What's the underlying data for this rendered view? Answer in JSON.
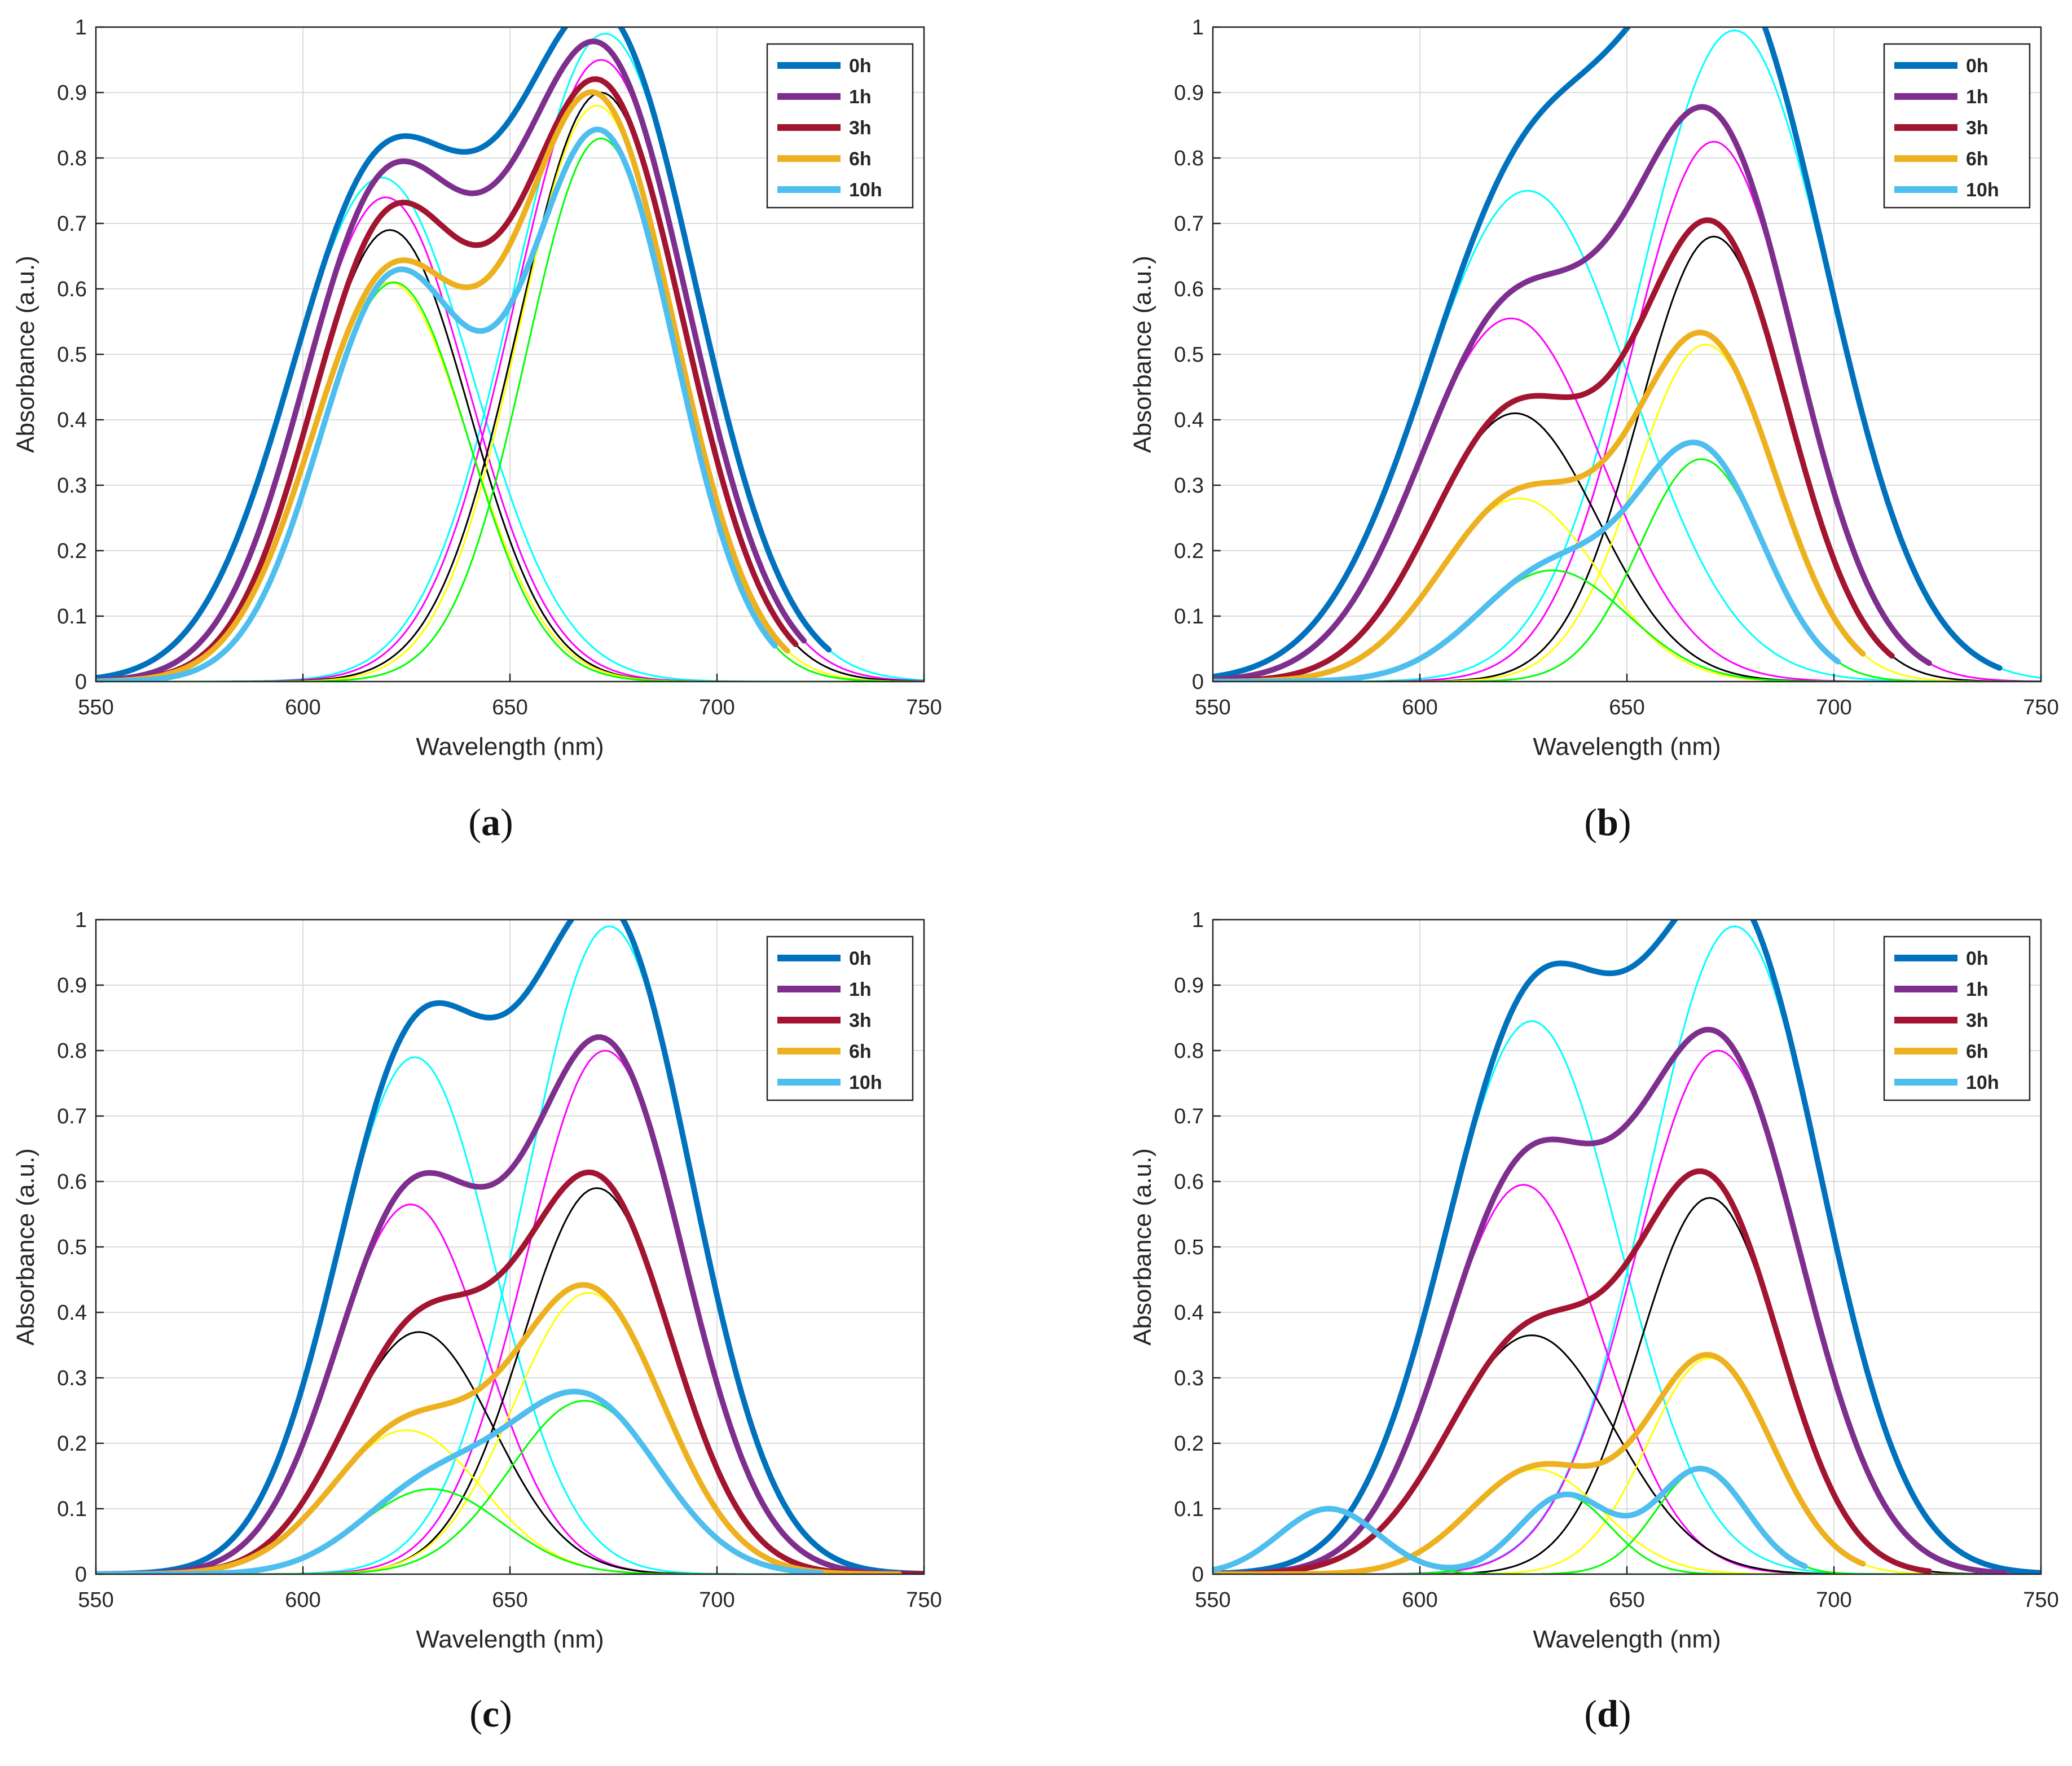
{
  "figure": {
    "panels": [
      "a",
      "b",
      "c",
      "d"
    ]
  },
  "legend": {
    "entries": [
      {
        "name": "0h",
        "color": "#0072BD"
      },
      {
        "name": "1h",
        "color": "#7E2F8E"
      },
      {
        "name": "3h",
        "color": "#A2142F"
      },
      {
        "name": "6h",
        "color": "#EDB120"
      },
      {
        "name": "10h",
        "color": "#4DBEEE"
      }
    ]
  },
  "fit_colors": {
    "0h": "#00FFFF",
    "1h": "#FF00FF",
    "3h": "#000000",
    "6h": "#FFFF00",
    "10h": "#00FF00"
  },
  "chart_data": [
    {
      "id": "a",
      "caption_letter": "a",
      "type": "line",
      "xlabel": "Wavelength (nm)",
      "ylabel": "Absorbance (a.u.)",
      "xlim": [
        550,
        750
      ],
      "ylim": [
        0,
        1
      ],
      "xticks": [
        "550",
        "600",
        "650",
        "700",
        "750"
      ],
      "yticks": [
        "0",
        "0.1",
        "0.2",
        "0.3",
        "0.4",
        "0.5",
        "0.6",
        "0.7",
        "0.8",
        "0.9",
        "1"
      ],
      "grid": true,
      "legend_position": "top-right",
      "series": [
        {
          "name": "0h",
          "x_cut": 727,
          "peaks": [
            {
              "amp": 0.77,
              "center": 619,
              "sigma": 22
            },
            {
              "amp": 0.99,
              "center": 673,
              "sigma": 22
            }
          ]
        },
        {
          "name": "1h",
          "x_cut": 721,
          "peaks": [
            {
              "amp": 0.74,
              "center": 620,
              "sigma": 20
            },
            {
              "amp": 0.95,
              "center": 672,
              "sigma": 21
            }
          ]
        },
        {
          "name": "3h",
          "x_cut": 719,
          "peaks": [
            {
              "amp": 0.69,
              "center": 621,
              "sigma": 19
            },
            {
              "amp": 0.9,
              "center": 672,
              "sigma": 20
            }
          ]
        },
        {
          "name": "6h",
          "x_cut": 717,
          "peaks": [
            {
              "amp": 0.61,
              "center": 621,
              "sigma": 19
            },
            {
              "amp": 0.88,
              "center": 671,
              "sigma": 19
            }
          ]
        },
        {
          "name": "10h",
          "x_cut": 714,
          "peaks": [
            {
              "amp": 0.61,
              "center": 622,
              "sigma": 18
            },
            {
              "amp": 0.83,
              "center": 672,
              "sigma": 18
            }
          ]
        }
      ]
    },
    {
      "id": "b",
      "caption_letter": "b",
      "type": "line",
      "xlabel": "Wavelength (nm)",
      "ylabel": "Absorbance (a.u.)",
      "xlim": [
        550,
        750
      ],
      "ylim": [
        0,
        1
      ],
      "xticks": [
        "550",
        "600",
        "650",
        "700",
        "750"
      ],
      "yticks": [
        "0",
        "0.1",
        "0.2",
        "0.3",
        "0.4",
        "0.5",
        "0.6",
        "0.7",
        "0.8",
        "0.9",
        "1"
      ],
      "grid": true,
      "legend_position": "top-right",
      "series": [
        {
          "name": "0h",
          "x_cut": 740,
          "peaks": [
            {
              "amp": 0.75,
              "center": 626,
              "sigma": 25
            },
            {
              "amp": 0.995,
              "center": 676,
              "sigma": 23
            }
          ]
        },
        {
          "name": "1h",
          "x_cut": 723,
          "peaks": [
            {
              "amp": 0.555,
              "center": 622,
              "sigma": 22
            },
            {
              "amp": 0.825,
              "center": 671,
              "sigma": 20
            }
          ]
        },
        {
          "name": "3h",
          "x_cut": 714,
          "peaks": [
            {
              "amp": 0.41,
              "center": 623,
              "sigma": 20
            },
            {
              "amp": 0.68,
              "center": 671,
              "sigma": 18
            }
          ]
        },
        {
          "name": "6h",
          "x_cut": 707,
          "peaks": [
            {
              "amp": 0.28,
              "center": 624,
              "sigma": 19
            },
            {
              "amp": 0.515,
              "center": 669,
              "sigma": 17
            }
          ]
        },
        {
          "name": "10h",
          "x_cut": 701,
          "peaks": [
            {
              "amp": 0.17,
              "center": 632,
              "sigma": 18
            },
            {
              "amp": 0.34,
              "center": 668,
              "sigma": 15
            }
          ]
        }
      ]
    },
    {
      "id": "c",
      "caption_letter": "c",
      "type": "line",
      "xlabel": "Wavelength (nm)",
      "ylabel": "Absorbance (a.u.)",
      "xlim": [
        550,
        750
      ],
      "ylim": [
        0,
        1
      ],
      "xticks": [
        "550",
        "600",
        "650",
        "700",
        "750"
      ],
      "yticks": [
        "0",
        "0.1",
        "0.2",
        "0.3",
        "0.4",
        "0.5",
        "0.6",
        "0.7",
        "0.8",
        "0.9",
        "1"
      ],
      "grid": true,
      "legend_position": "top-right",
      "series": [
        {
          "name": "0h",
          "x_cut": 750,
          "peaks": [
            {
              "amp": 0.79,
              "center": 627,
              "sigma": 19
            },
            {
              "amp": 0.99,
              "center": 674,
              "sigma": 20
            }
          ]
        },
        {
          "name": "1h",
          "x_cut": 750,
          "peaks": [
            {
              "amp": 0.565,
              "center": 626,
              "sigma": 18
            },
            {
              "amp": 0.8,
              "center": 673,
              "sigma": 19
            }
          ]
        },
        {
          "name": "3h",
          "x_cut": 750,
          "peaks": [
            {
              "amp": 0.37,
              "center": 628,
              "sigma": 18
            },
            {
              "amp": 0.59,
              "center": 671,
              "sigma": 18
            }
          ]
        },
        {
          "name": "6h",
          "x_cut": 744,
          "peaks": [
            {
              "amp": 0.22,
              "center": 625,
              "sigma": 18
            },
            {
              "amp": 0.43,
              "center": 669,
              "sigma": 18
            }
          ]
        },
        {
          "name": "10h",
          "x_cut": 725,
          "peaks": [
            {
              "amp": 0.13,
              "center": 631,
              "sigma": 17
            },
            {
              "amp": 0.265,
              "center": 668,
              "sigma": 18
            }
          ]
        }
      ]
    },
    {
      "id": "d",
      "caption_letter": "d",
      "type": "line",
      "xlabel": "Wavelength (nm)",
      "ylabel": "Absorbance (a.u.)",
      "xlim": [
        550,
        750
      ],
      "ylim": [
        0,
        1
      ],
      "xticks": [
        "550",
        "600",
        "650",
        "700",
        "750"
      ],
      "yticks": [
        "0",
        "0.1",
        "0.2",
        "0.3",
        "0.4",
        "0.5",
        "0.6",
        "0.7",
        "0.8",
        "0.9",
        "1"
      ],
      "grid": true,
      "legend_position": "top-right",
      "series": [
        {
          "name": "0h",
          "x_cut": 750,
          "peaks": [
            {
              "amp": 0.845,
              "center": 627,
              "sigma": 21
            },
            {
              "amp": 0.99,
              "center": 676,
              "sigma": 21
            }
          ]
        },
        {
          "name": "1h",
          "x_cut": 741,
          "peaks": [
            {
              "amp": 0.595,
              "center": 625,
              "sigma": 19
            },
            {
              "amp": 0.8,
              "center": 672,
              "sigma": 20
            }
          ]
        },
        {
          "name": "3h",
          "x_cut": 723,
          "peaks": [
            {
              "amp": 0.365,
              "center": 627,
              "sigma": 20
            },
            {
              "amp": 0.575,
              "center": 670,
              "sigma": 17
            }
          ]
        },
        {
          "name": "6h",
          "x_cut": 707,
          "peaks": [
            {
              "amp": 0.16,
              "center": 628,
              "sigma": 16
            },
            {
              "amp": 0.33,
              "center": 670,
              "sigma": 15
            }
          ]
        },
        {
          "name": "10h",
          "x_cut": 693,
          "peaks": [
            {
              "amp": 0.1,
              "center": 578,
              "sigma": 12
            },
            {
              "amp": 0.12,
              "center": 635,
              "sigma": 11
            },
            {
              "amp": 0.16,
              "center": 668,
              "sigma": 11
            }
          ]
        }
      ]
    }
  ]
}
